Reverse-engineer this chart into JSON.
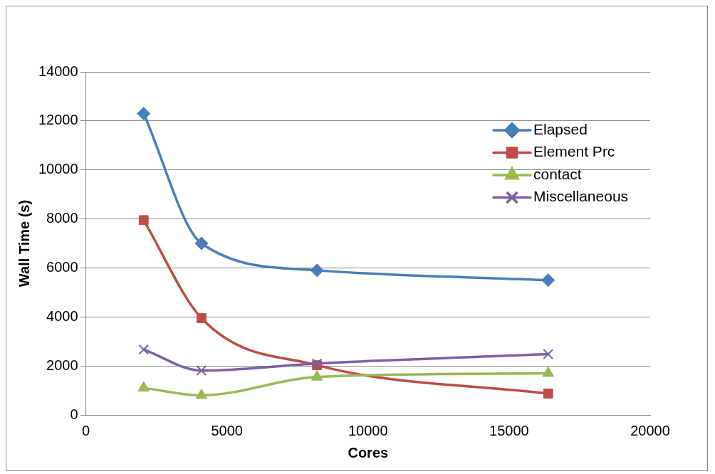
{
  "chart_data": {
    "type": "line",
    "xlabel": "Cores",
    "ylabel": "Wall Time (s)",
    "x": [
      2048,
      4096,
      8192,
      16384
    ],
    "xlim": [
      0,
      20000
    ],
    "xticks": [
      0,
      5000,
      10000,
      15000,
      20000
    ],
    "ylim": [
      0,
      14000
    ],
    "yticks": [
      0,
      2000,
      4000,
      6000,
      8000,
      10000,
      12000,
      14000
    ],
    "grid": "y",
    "legend": "right",
    "line_style": "solid",
    "series": [
      {
        "name": "Elapsed",
        "color": "#4a7ebb",
        "marker": "diamond",
        "values": [
          12300,
          7000,
          5900,
          5500
        ]
      },
      {
        "name": "Element Prc",
        "color": "#be4b48",
        "marker": "square",
        "values": [
          7950,
          3950,
          2030,
          870
        ]
      },
      {
        "name": "contact",
        "color": "#98b954",
        "marker": "triangle",
        "values": [
          1100,
          800,
          1550,
          1700
        ]
      },
      {
        "name": "Miscellaneous",
        "color": "#7d60a0",
        "marker": "cross",
        "values": [
          2670,
          1810,
          2100,
          2480
        ]
      }
    ]
  }
}
